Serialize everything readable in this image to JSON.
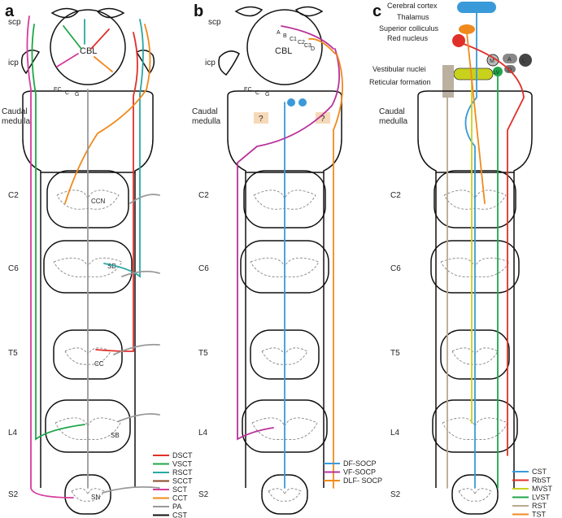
{
  "panels": [
    {
      "letter": "a",
      "cbl": "CBL",
      "scp": "scp",
      "icp": "icp",
      "nuclei": [
        "EC",
        "C",
        "G"
      ],
      "caudal_medulla": [
        "Caudal",
        "medulla"
      ],
      "levels": [
        "C2",
        "C6",
        "T5",
        "L4",
        "S2"
      ],
      "inner_labels": {
        "ccn": "CCN",
        "sb1": "SB",
        "cc": "CC",
        "sb2": "SB",
        "sn": "SN"
      },
      "legend": [
        {
          "label": "DSCT",
          "color": "#e0302a"
        },
        {
          "label": "VSCT",
          "color": "#1fa64a"
        },
        {
          "label": "RSCT",
          "color": "#2aa7a2"
        },
        {
          "label": "SCCT",
          "color": "#8a4a2a"
        },
        {
          "label": "SCT",
          "color": "#d63a9c"
        },
        {
          "label": "CCT",
          "color": "#f08a1c"
        },
        {
          "label": "PA",
          "color": "#999999"
        },
        {
          "label": "CST",
          "color": "#111111"
        }
      ]
    },
    {
      "letter": "b",
      "cbl": "CBL",
      "scp": "scp",
      "icp": "icp",
      "nuclei": [
        "EC",
        "C",
        "G"
      ],
      "cbl_lobules": [
        "A",
        "B",
        "C1",
        "C2",
        "C3",
        "D"
      ],
      "caudal_medulla": [
        "Caudal",
        "medulla"
      ],
      "levels": [
        "C2",
        "C6",
        "T5",
        "L4",
        "S2"
      ],
      "question": "?",
      "legend": [
        {
          "label": "DF-SOCP",
          "color": "#3a9ad9"
        },
        {
          "label": "VF-SOCP",
          "color": "#b8329a"
        },
        {
          "label": "DLF- SOCP",
          "color": "#f08a1c"
        }
      ]
    },
    {
      "letter": "c",
      "brain_labels": [
        "Cerebral cortex",
        "Thalamus",
        "Superior colliculus",
        "Red nucleus",
        "Vestibular nuclei",
        "Reticular formation"
      ],
      "vn_nuclei": [
        "M",
        "A",
        "L",
        "D",
        "LV"
      ],
      "caudal_medulla": [
        "Caudal",
        "medulla"
      ],
      "levels": [
        "C2",
        "C6",
        "T5",
        "L4",
        "S2"
      ],
      "legend": [
        {
          "label": "CST",
          "color": "#3a9ad9"
        },
        {
          "label": "RbST",
          "color": "#e0302a"
        },
        {
          "label": "MVST",
          "color": "#c8d21c"
        },
        {
          "label": "LVST",
          "color": "#1fa64a"
        },
        {
          "label": "RST",
          "color": "#b8a890"
        },
        {
          "label": "TST",
          "color": "#f08a1c"
        }
      ]
    }
  ]
}
